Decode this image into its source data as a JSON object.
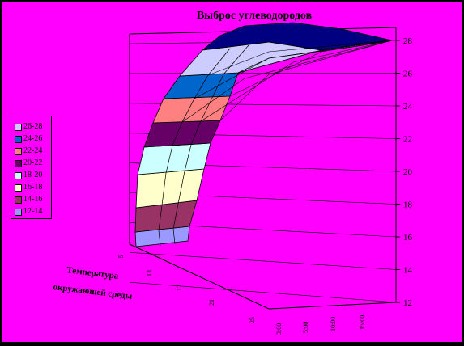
{
  "chart_data": {
    "type": "surface",
    "title": "Выброс углеводородов",
    "xlabel": "Температура окружающей среды",
    "ylabel": "",
    "zlabel": "",
    "z_ticks": [
      "12",
      "14",
      "16",
      "18",
      "20",
      "22",
      "24",
      "26",
      "28"
    ],
    "zlim": [
      12,
      28
    ],
    "x_ticks": [
      "-5",
      "13",
      "17",
      "21",
      "25"
    ],
    "y_ticks": [
      "3:00",
      "5:00",
      "10:00",
      "15:00"
    ],
    "legend": [
      {
        "label": "26-28",
        "color": "#ccccff"
      },
      {
        "label": "24-26",
        "color": "#0066cc"
      },
      {
        "label": "22-24",
        "color": "#ff8080"
      },
      {
        "label": "20-22",
        "color": "#660066"
      },
      {
        "label": "18-20",
        "color": "#ccffff"
      },
      {
        "label": "16-18",
        "color": "#ffffcc"
      },
      {
        "label": "14-16",
        "color": "#993366"
      },
      {
        "label": "12-14",
        "color": "#9999ff"
      }
    ],
    "legend_position": "left",
    "grid": true
  }
}
